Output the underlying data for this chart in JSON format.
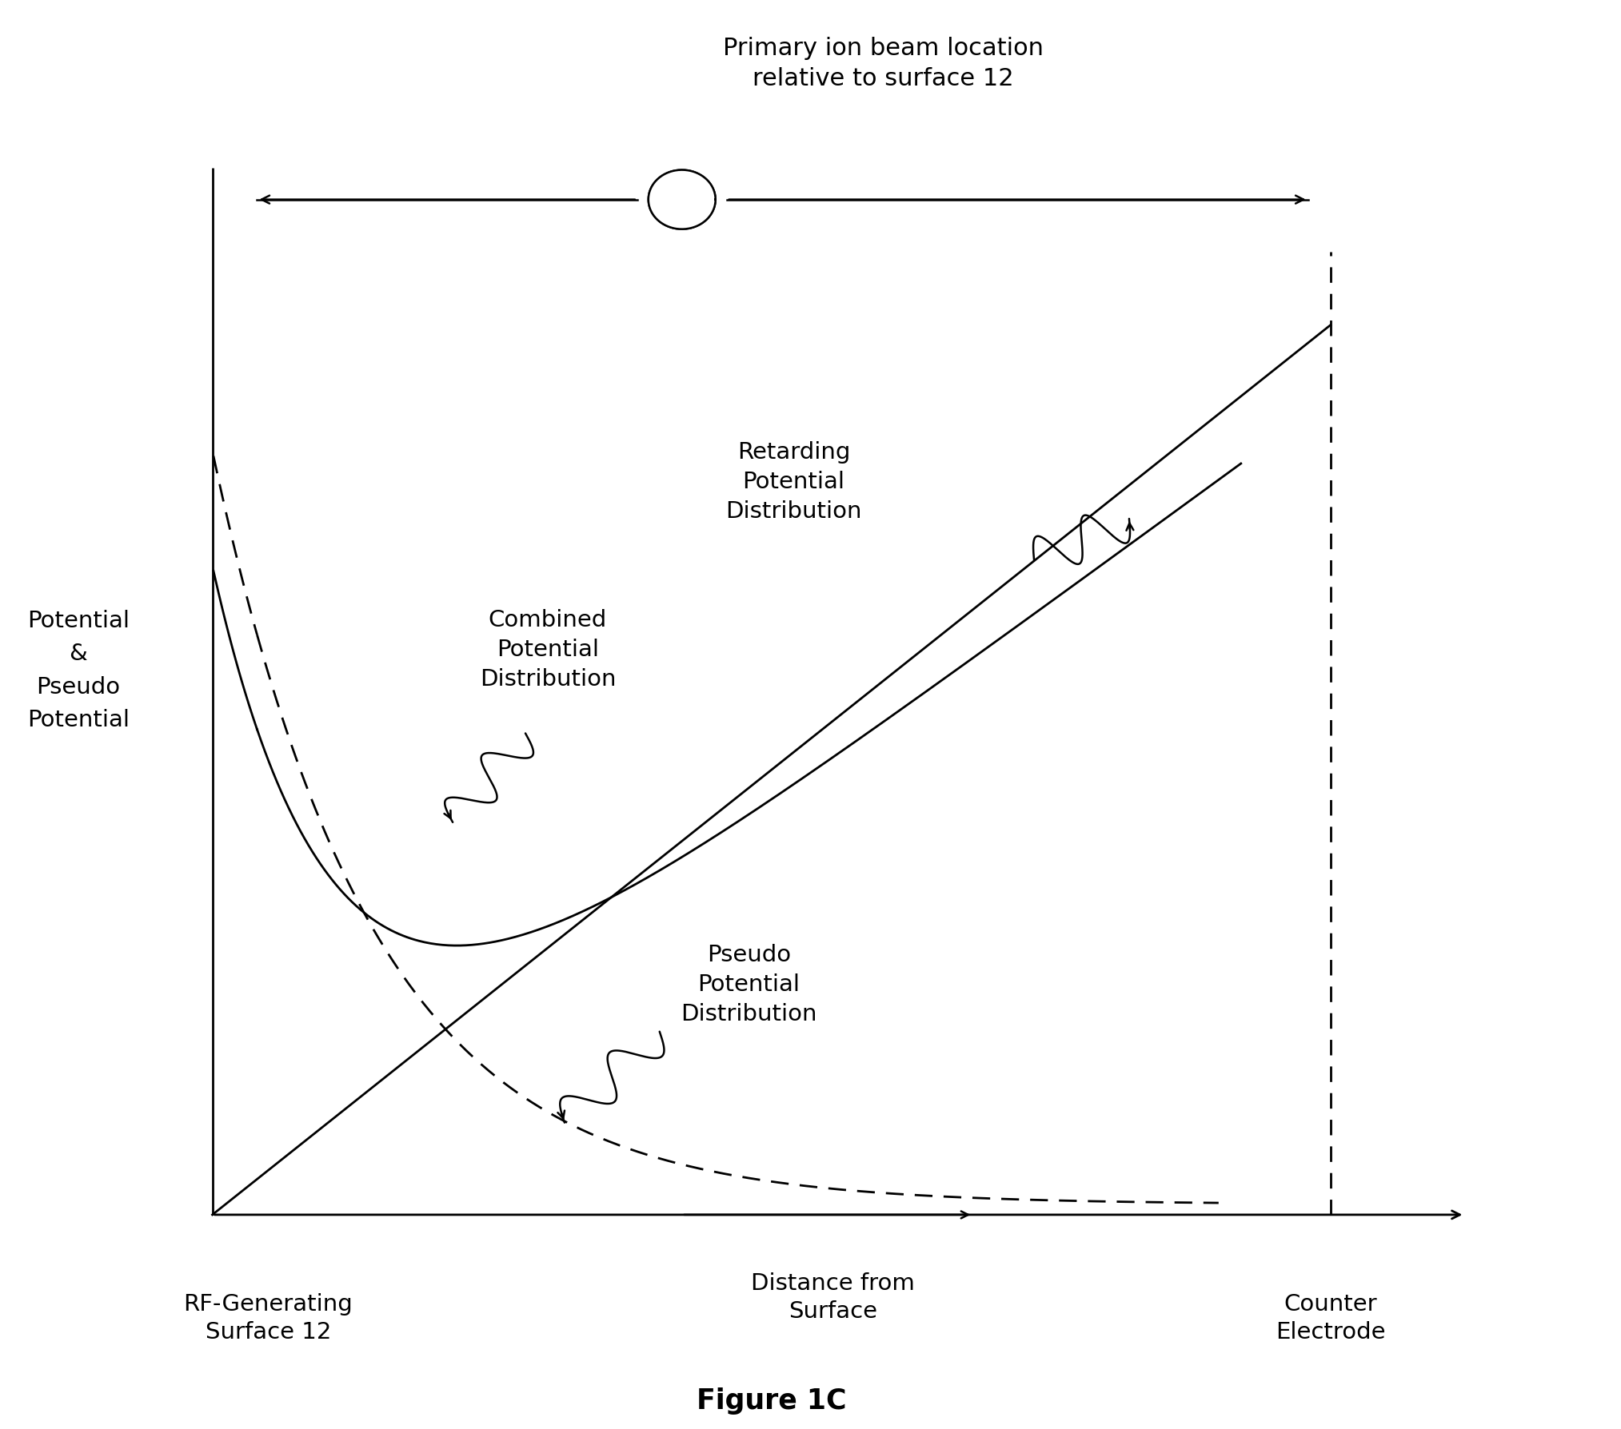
{
  "title": "Figure 1C",
  "ylabel": "Potential\n&\nPseudo\nPotential",
  "xlabel_arrow": "Distance from\nSurface",
  "top_label": "Primary ion beam location\nrelative to surface 12",
  "left_axis_label": "RF-Generating\nSurface 12",
  "right_axis_label": "Counter\nElectrode",
  "retarding_label": "Retarding\nPotential\nDistribution",
  "combined_label": "Combined\nPotential\nDistribution",
  "pseudo_label": "Pseudo\nPotential\nDistribution",
  "background_color": "#ffffff",
  "text_color": "#000000",
  "line_color": "#000000",
  "axis_linewidth": 2.0,
  "curve_linewidth": 2.0,
  "fig_width": 20.27,
  "fig_height": 17.88,
  "dpi": 100
}
